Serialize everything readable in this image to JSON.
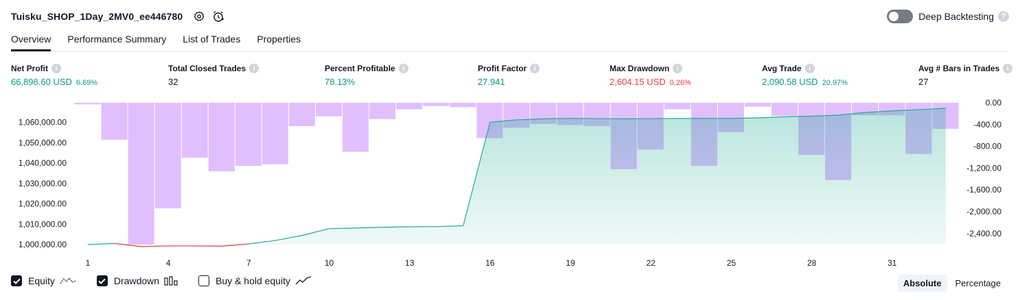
{
  "header": {
    "strategy_name": "Tuisku_SHOP_1Day_2MV0_ee446780",
    "deep_backtesting_label": "Deep Backtesting"
  },
  "tabs": [
    {
      "label": "Overview"
    },
    {
      "label": "Performance Summary"
    },
    {
      "label": "List of Trades"
    },
    {
      "label": "Properties"
    }
  ],
  "metrics": {
    "net_profit": {
      "label": "Net Profit",
      "value": "66,898.60 USD",
      "pct": "6.69%"
    },
    "total_closed_trades": {
      "label": "Total Closed Trades",
      "value": "32"
    },
    "percent_profitable": {
      "label": "Percent Profitable",
      "value": "78.13%"
    },
    "profit_factor": {
      "label": "Profit Factor",
      "value": "27.941"
    },
    "max_drawdown": {
      "label": "Max Drawdown",
      "value": "2,604.15 USD",
      "pct": "0.26%"
    },
    "avg_trade": {
      "label": "Avg Trade",
      "value": "2,090.58 USD",
      "pct": "20.97%"
    },
    "avg_bars": {
      "label": "Avg # Bars in Trades",
      "value": "27"
    }
  },
  "colors": {
    "equity_line": "#22ab94",
    "equity_fill": "#22ab94",
    "equity_below": "#f23645",
    "drawdown_bar": "#e1bfff",
    "positive": "#089981",
    "negative": "#f23645"
  },
  "chart_data": {
    "type": "line",
    "x": [
      1,
      2,
      3,
      4,
      5,
      6,
      7,
      8,
      9,
      10,
      11,
      12,
      13,
      14,
      15,
      16,
      17,
      18,
      19,
      20,
      21,
      22,
      23,
      24,
      25,
      26,
      27,
      28,
      29,
      30,
      31,
      32,
      33
    ],
    "series": [
      {
        "name": "Equity",
        "type": "area",
        "values": [
          1000000,
          1000500,
          999000,
          999300,
          999300,
          999200,
          1000300,
          1002000,
          1004500,
          1007800,
          1008100,
          1008500,
          1008700,
          1008800,
          1009200,
          1060000,
          1061200,
          1061700,
          1061900,
          1061800,
          1061700,
          1061800,
          1061900,
          1061900,
          1061900,
          1062200,
          1062700,
          1063000,
          1063500,
          1064800,
          1065600,
          1066200,
          1066900
        ]
      },
      {
        "name": "Drawdown",
        "type": "bar",
        "values": [
          -30,
          -680,
          -2604,
          -1940,
          -1010,
          -1260,
          -1160,
          -1130,
          -430,
          -250,
          -900,
          -300,
          -120,
          -60,
          -80,
          -650,
          -460,
          -390,
          -410,
          -430,
          -1220,
          -860,
          -120,
          -1160,
          -540,
          -70,
          -240,
          -960,
          -1420,
          -230,
          -230,
          -940,
          -480
        ]
      }
    ],
    "y_left": {
      "ticks": [
        "1,000,000.00",
        "1,010,000.00",
        "1,020,000.00",
        "1,030,000.00",
        "1,040,000.00",
        "1,050,000.00",
        "1,060,000.00"
      ],
      "min": 1000000,
      "max": 1066900
    },
    "y_right": {
      "ticks": [
        "0.00",
        "-400.00",
        "-800.00",
        "-1,200.00",
        "-1,600.00",
        "-2,000.00",
        "-2,400.00"
      ],
      "min": -2604,
      "max": 0
    },
    "x_ticks": [
      "1",
      "4",
      "7",
      "10",
      "13",
      "16",
      "19",
      "22",
      "25",
      "28",
      "31"
    ]
  },
  "legend": [
    {
      "label": "Equity",
      "checked": true,
      "icon": "equity-line-icon"
    },
    {
      "label": "Drawdown",
      "checked": true,
      "icon": "drawdown-bars-icon"
    },
    {
      "label": "Buy & hold equity",
      "checked": false,
      "icon": "buy-hold-line-icon"
    }
  ],
  "mode": {
    "absolute": "Absolute",
    "percentage": "Percentage",
    "selected": "Absolute"
  }
}
